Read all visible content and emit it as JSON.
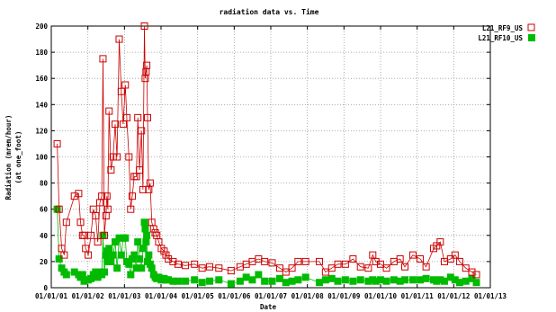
{
  "chart_data": {
    "type": "line",
    "title": "radiation data vs. Time",
    "xlabel": "Date",
    "ylabel": [
      "Radiation (mrem/hour)",
      "(at one_foot)"
    ],
    "xlim": [
      "2001-01-01",
      "2013-01-01"
    ],
    "ylim": [
      0,
      200
    ],
    "yticks": [
      0,
      20,
      40,
      60,
      80,
      100,
      120,
      140,
      160,
      180,
      200
    ],
    "xticks": [
      "01/01/01",
      "01/01/02",
      "01/01/03",
      "01/01/04",
      "01/01/05",
      "01/01/06",
      "01/01/07",
      "01/01/08",
      "01/01/09",
      "01/01/10",
      "01/01/11",
      "01/01/12",
      "01/01/13"
    ],
    "grid": true,
    "legend_position": "outside-top-right",
    "series": [
      {
        "name": "L21_RF9_US",
        "color": "#cc0000",
        "marker": "open-square",
        "points": [
          [
            "2001-03-01",
            110
          ],
          [
            "2001-03-20",
            60
          ],
          [
            "2001-04-15",
            30
          ],
          [
            "2001-05-10",
            25
          ],
          [
            "2001-06-01",
            50
          ],
          [
            "2001-08-20",
            70
          ],
          [
            "2001-10-01",
            72
          ],
          [
            "2001-10-20",
            50
          ],
          [
            "2001-11-10",
            40
          ],
          [
            "2001-11-25",
            40
          ],
          [
            "2001-12-10",
            30
          ],
          [
            "2002-01-05",
            25
          ],
          [
            "2002-02-01",
            40
          ],
          [
            "2002-02-25",
            60
          ],
          [
            "2002-03-20",
            55
          ],
          [
            "2002-04-10",
            35
          ],
          [
            "2002-05-01",
            65
          ],
          [
            "2002-05-20",
            70
          ],
          [
            "2002-06-01",
            175
          ],
          [
            "2002-06-15",
            40
          ],
          [
            "2002-07-01",
            55
          ],
          [
            "2002-07-10",
            70
          ],
          [
            "2002-07-20",
            60
          ],
          [
            "2002-08-01",
            135
          ],
          [
            "2002-08-20",
            90
          ],
          [
            "2002-09-10",
            100
          ],
          [
            "2002-10-01",
            125
          ],
          [
            "2002-10-20",
            100
          ],
          [
            "2002-11-10",
            190
          ],
          [
            "2002-12-01",
            150
          ],
          [
            "2002-12-20",
            125
          ],
          [
            "2003-01-10",
            155
          ],
          [
            "2003-01-25",
            130
          ],
          [
            "2003-02-15",
            100
          ],
          [
            "2003-03-05",
            60
          ],
          [
            "2003-03-20",
            70
          ],
          [
            "2003-04-10",
            85
          ],
          [
            "2003-05-01",
            85
          ],
          [
            "2003-05-15",
            130
          ],
          [
            "2003-06-01",
            90
          ],
          [
            "2003-06-20",
            120
          ],
          [
            "2003-07-05",
            75
          ],
          [
            "2003-07-20",
            200
          ],
          [
            "2003-07-28",
            160
          ],
          [
            "2003-08-05",
            165
          ],
          [
            "2003-08-12",
            170
          ],
          [
            "2003-08-20",
            130
          ],
          [
            "2003-09-01",
            75
          ],
          [
            "2003-09-15",
            80
          ],
          [
            "2003-10-01",
            50
          ],
          [
            "2003-10-20",
            45
          ],
          [
            "2003-11-05",
            42
          ],
          [
            "2003-11-20",
            40
          ],
          [
            "2003-12-10",
            35
          ],
          [
            "2004-01-05",
            30
          ],
          [
            "2004-02-01",
            28
          ],
          [
            "2004-02-20",
            25
          ],
          [
            "2004-03-15",
            22
          ],
          [
            "2004-05-01",
            20
          ],
          [
            "2004-06-20",
            18
          ],
          [
            "2004-09-01",
            17
          ],
          [
            "2004-12-01",
            18
          ],
          [
            "2005-02-15",
            15
          ],
          [
            "2005-05-01",
            16
          ],
          [
            "2005-08-01",
            15
          ],
          [
            "2005-12-01",
            13
          ],
          [
            "2006-03-01",
            16
          ],
          [
            "2006-05-01",
            18
          ],
          [
            "2006-07-01",
            20
          ],
          [
            "2006-09-01",
            22
          ],
          [
            "2006-11-01",
            20
          ],
          [
            "2007-01-15",
            19
          ],
          [
            "2007-04-01",
            15
          ],
          [
            "2007-06-01",
            12
          ],
          [
            "2007-08-01",
            15
          ],
          [
            "2007-10-01",
            20
          ],
          [
            "2007-12-15",
            20
          ],
          [
            "2008-05-01",
            20
          ],
          [
            "2008-07-01",
            12
          ],
          [
            "2008-09-01",
            15
          ],
          [
            "2008-11-01",
            18
          ],
          [
            "2009-01-15",
            18
          ],
          [
            "2009-04-01",
            22
          ],
          [
            "2009-06-15",
            16
          ],
          [
            "2009-09-01",
            15
          ],
          [
            "2009-10-15",
            25
          ],
          [
            "2009-11-15",
            20
          ],
          [
            "2010-01-01",
            18
          ],
          [
            "2010-03-01",
            15
          ],
          [
            "2010-05-15",
            20
          ],
          [
            "2010-07-15",
            22
          ],
          [
            "2010-09-01",
            16
          ],
          [
            "2010-11-20",
            25
          ],
          [
            "2011-02-01",
            22
          ],
          [
            "2011-04-01",
            16
          ],
          [
            "2011-06-15",
            30
          ],
          [
            "2011-07-15",
            32
          ],
          [
            "2011-08-20",
            35
          ],
          [
            "2011-10-01",
            20
          ],
          [
            "2011-12-01",
            22
          ],
          [
            "2012-01-15",
            25
          ],
          [
            "2012-03-01",
            20
          ],
          [
            "2012-05-01",
            15
          ],
          [
            "2012-07-01",
            12
          ],
          [
            "2012-08-15",
            10
          ]
        ]
      },
      {
        "name": "L21_RF10_US",
        "color": "#00bb00",
        "marker": "filled-square",
        "points": [
          [
            "2001-03-01",
            60
          ],
          [
            "2001-03-20",
            22
          ],
          [
            "2001-04-15",
            15
          ],
          [
            "2001-05-10",
            12
          ],
          [
            "2001-06-01",
            10
          ],
          [
            "2001-08-20",
            12
          ],
          [
            "2001-10-01",
            10
          ],
          [
            "2001-10-20",
            8
          ],
          [
            "2001-11-10",
            10
          ],
          [
            "2001-11-25",
            5
          ],
          [
            "2001-12-10",
            6
          ],
          [
            "2002-01-05",
            6
          ],
          [
            "2002-02-01",
            7
          ],
          [
            "2002-02-25",
            10
          ],
          [
            "2002-03-20",
            12
          ],
          [
            "2002-04-10",
            8
          ],
          [
            "2002-05-01",
            12
          ],
          [
            "2002-05-20",
            10
          ],
          [
            "2002-06-01",
            40
          ],
          [
            "2002-06-15",
            12
          ],
          [
            "2002-07-01",
            25
          ],
          [
            "2002-07-10",
            28
          ],
          [
            "2002-07-20",
            20
          ],
          [
            "2002-08-01",
            30
          ],
          [
            "2002-08-20",
            20
          ],
          [
            "2002-09-10",
            25
          ],
          [
            "2002-10-01",
            35
          ],
          [
            "2002-10-20",
            15
          ],
          [
            "2002-11-10",
            38
          ],
          [
            "2002-12-01",
            25
          ],
          [
            "2002-12-20",
            38
          ],
          [
            "2003-01-10",
            38
          ],
          [
            "2003-01-25",
            20
          ],
          [
            "2003-02-15",
            18
          ],
          [
            "2003-03-05",
            10
          ],
          [
            "2003-03-20",
            22
          ],
          [
            "2003-04-10",
            25
          ],
          [
            "2003-05-01",
            15
          ],
          [
            "2003-05-15",
            35
          ],
          [
            "2003-06-01",
            22
          ],
          [
            "2003-06-20",
            15
          ],
          [
            "2003-07-05",
            30
          ],
          [
            "2003-07-20",
            50
          ],
          [
            "2003-07-28",
            45
          ],
          [
            "2003-08-05",
            35
          ],
          [
            "2003-08-12",
            40
          ],
          [
            "2003-08-20",
            20
          ],
          [
            "2003-09-01",
            25
          ],
          [
            "2003-09-15",
            18
          ],
          [
            "2003-10-01",
            15
          ],
          [
            "2003-10-20",
            10
          ],
          [
            "2003-11-05",
            8
          ],
          [
            "2003-11-20",
            7
          ],
          [
            "2003-12-10",
            8
          ],
          [
            "2004-01-05",
            6
          ],
          [
            "2004-02-01",
            7
          ],
          [
            "2004-02-20",
            6
          ],
          [
            "2004-03-15",
            6
          ],
          [
            "2004-05-01",
            5
          ],
          [
            "2004-06-20",
            5
          ],
          [
            "2004-09-01",
            5
          ],
          [
            "2004-12-01",
            6
          ],
          [
            "2005-02-15",
            4
          ],
          [
            "2005-05-01",
            5
          ],
          [
            "2005-08-01",
            6
          ],
          [
            "2005-12-01",
            3
          ],
          [
            "2006-03-01",
            5
          ],
          [
            "2006-05-01",
            8
          ],
          [
            "2006-07-01",
            6
          ],
          [
            "2006-09-01",
            10
          ],
          [
            "2006-11-01",
            5
          ],
          [
            "2007-01-15",
            5
          ],
          [
            "2007-04-01",
            7
          ],
          [
            "2007-06-01",
            4
          ],
          [
            "2007-08-01",
            5
          ],
          [
            "2007-10-01",
            6
          ],
          [
            "2007-12-15",
            8
          ],
          [
            "2008-05-01",
            4
          ],
          [
            "2008-07-01",
            6
          ],
          [
            "2008-09-01",
            7
          ],
          [
            "2008-11-01",
            5
          ],
          [
            "2009-01-15",
            6
          ],
          [
            "2009-04-01",
            5
          ],
          [
            "2009-06-15",
            6
          ],
          [
            "2009-09-01",
            5
          ],
          [
            "2009-10-15",
            6
          ],
          [
            "2009-11-15",
            5
          ],
          [
            "2010-01-01",
            6
          ],
          [
            "2010-03-01",
            5
          ],
          [
            "2010-05-15",
            6
          ],
          [
            "2010-07-15",
            5
          ],
          [
            "2010-09-01",
            6
          ],
          [
            "2010-11-20",
            6
          ],
          [
            "2011-02-01",
            6
          ],
          [
            "2011-04-01",
            7
          ],
          [
            "2011-06-15",
            6
          ],
          [
            "2011-07-15",
            5
          ],
          [
            "2011-08-20",
            6
          ],
          [
            "2011-10-01",
            5
          ],
          [
            "2011-12-01",
            8
          ],
          [
            "2012-01-15",
            6
          ],
          [
            "2012-03-01",
            4
          ],
          [
            "2012-05-01",
            5
          ],
          [
            "2012-07-01",
            7
          ],
          [
            "2012-08-15",
            4
          ]
        ]
      }
    ]
  }
}
